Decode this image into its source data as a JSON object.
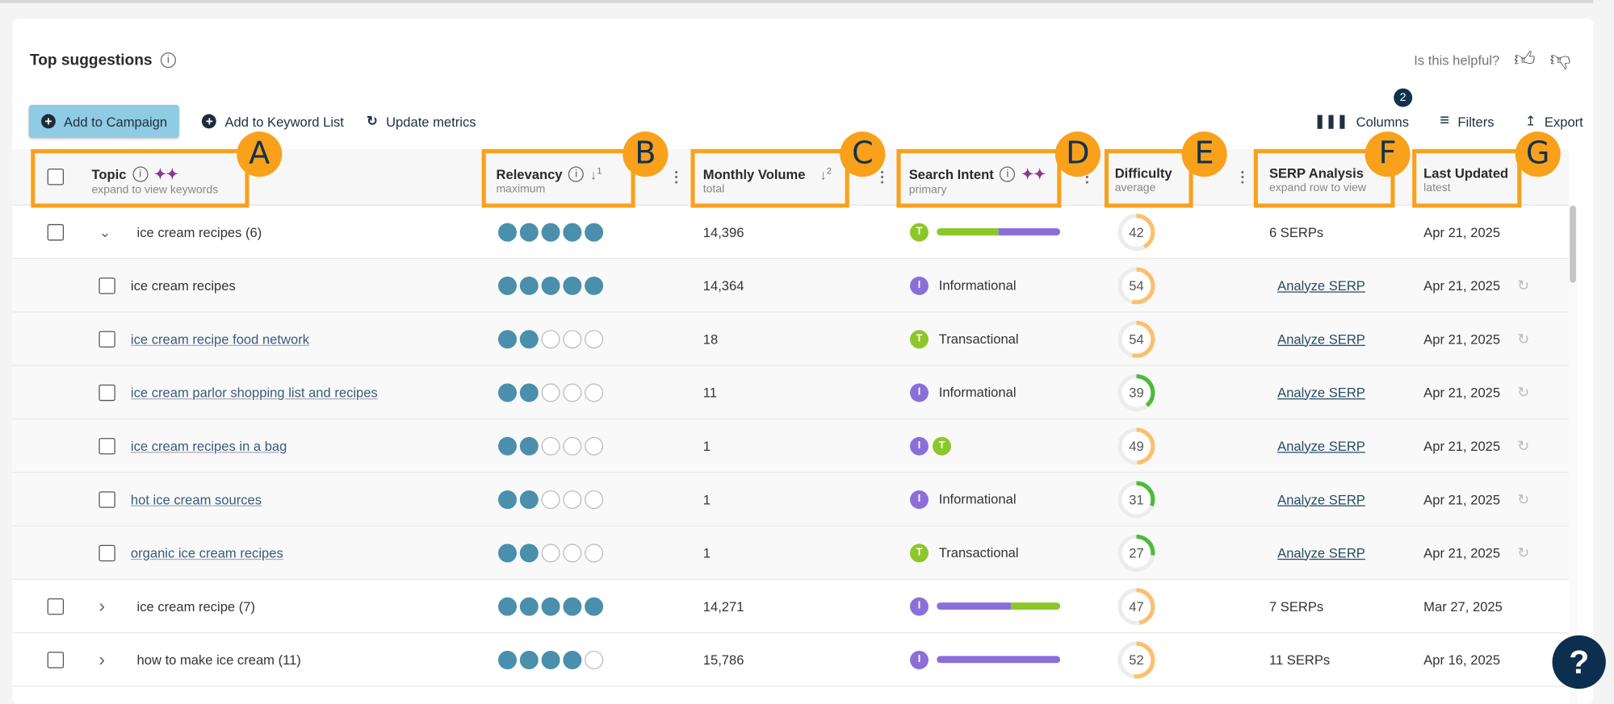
{
  "header": {
    "title": "Top suggestions",
    "helpful_label": "Is this helpful?"
  },
  "toolbar": {
    "add_campaign": "Add to Campaign",
    "add_keyword_list": "Add to Keyword List",
    "update_metrics": "Update metrics",
    "columns": "Columns",
    "filters": "Filters",
    "filters_count": "2",
    "export": "Export"
  },
  "columns": {
    "topic": {
      "label": "Topic",
      "sub": "expand to view keywords"
    },
    "relevancy": {
      "label": "Relevancy",
      "sub": "maximum",
      "sort": "1"
    },
    "volume": {
      "label": "Monthly Volume",
      "sub": "total",
      "sort": "2"
    },
    "intent": {
      "label": "Search Intent",
      "sub": "primary"
    },
    "difficulty": {
      "label": "Difficulty",
      "sub": "average"
    },
    "serp": {
      "label": "SERP Analysis",
      "sub": "expand row to view"
    },
    "updated": {
      "label": "Last Updated",
      "sub": "latest"
    }
  },
  "callouts": [
    "A",
    "B",
    "C",
    "D",
    "E",
    "F",
    "G"
  ],
  "colors": {
    "informational": "#8b6fd9",
    "transactional": "#8cc72a",
    "relevancy": "#4a8fab",
    "difficulty_medium": "#fdbf6f",
    "difficulty_easy": "#4cbb3a",
    "callout": "#f9a11b"
  },
  "rows": [
    {
      "type": "group",
      "expanded": true,
      "topic": "ice cream recipes (6)",
      "relevancy": 5,
      "volume": "14,396",
      "intent_primary": "T",
      "intent_mix": [
        {
          "k": "T",
          "pct": 50
        },
        {
          "k": "I",
          "pct": 50
        }
      ],
      "difficulty": 42,
      "serp": "6 SERPs",
      "updated": "Apr 21, 2025"
    },
    {
      "type": "child",
      "topic": "ice cream recipes",
      "linked": false,
      "relevancy": 5,
      "volume": "14,364",
      "intents": [
        "I"
      ],
      "intent_label": "Informational",
      "difficulty": 54,
      "serp": "Analyze SERP",
      "updated": "Apr 21, 2025"
    },
    {
      "type": "child",
      "topic": "ice cream recipe food network",
      "linked": true,
      "relevancy": 2,
      "volume": "18",
      "intents": [
        "T"
      ],
      "intent_label": "Transactional",
      "difficulty": 54,
      "serp": "Analyze SERP",
      "updated": "Apr 21, 2025"
    },
    {
      "type": "child",
      "topic": "ice cream parlor shopping list and recipes",
      "linked": true,
      "relevancy": 2,
      "volume": "11",
      "intents": [
        "I"
      ],
      "intent_label": "Informational",
      "difficulty": 39,
      "serp": "Analyze SERP",
      "updated": "Apr 21, 2025"
    },
    {
      "type": "child",
      "topic": "ice cream recipes in a bag",
      "linked": true,
      "relevancy": 2,
      "volume": "1",
      "intents": [
        "I",
        "T"
      ],
      "intent_label": "",
      "difficulty": 49,
      "serp": "Analyze SERP",
      "updated": "Apr 21, 2025"
    },
    {
      "type": "child",
      "topic": "hot ice cream sources",
      "linked": true,
      "relevancy": 2,
      "volume": "1",
      "intents": [
        "I"
      ],
      "intent_label": "Informational",
      "difficulty": 31,
      "serp": "Analyze SERP",
      "updated": "Apr 21, 2025"
    },
    {
      "type": "child",
      "topic": "organic ice cream recipes",
      "linked": true,
      "relevancy": 2,
      "volume": "1",
      "intents": [
        "T"
      ],
      "intent_label": "Transactional",
      "difficulty": 27,
      "serp": "Analyze SERP",
      "updated": "Apr 21, 2025"
    },
    {
      "type": "group",
      "expanded": false,
      "topic": "ice cream recipe (7)",
      "relevancy": 5,
      "volume": "14,271",
      "intent_primary": "I",
      "intent_mix": [
        {
          "k": "I",
          "pct": 60
        },
        {
          "k": "T",
          "pct": 40
        }
      ],
      "difficulty": 47,
      "serp": "7 SERPs",
      "updated": "Mar 27, 2025"
    },
    {
      "type": "group",
      "expanded": false,
      "topic": "how to make ice cream (11)",
      "relevancy": 4,
      "volume": "15,786",
      "intent_primary": "I",
      "intent_mix": [
        {
          "k": "I",
          "pct": 100
        }
      ],
      "difficulty": 52,
      "serp": "11 SERPs",
      "updated": "Apr 16, 2025"
    }
  ]
}
